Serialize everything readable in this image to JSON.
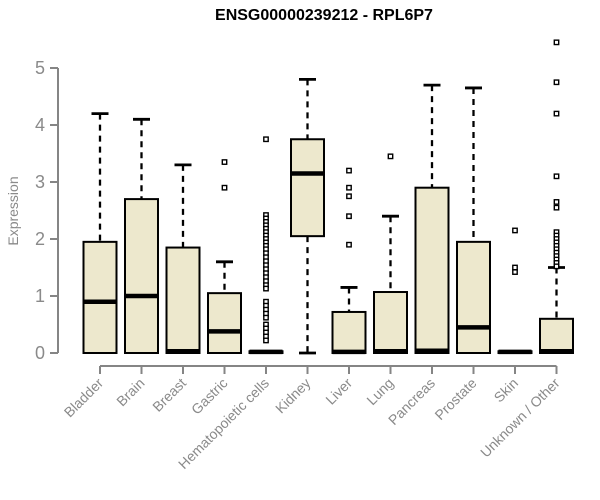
{
  "title": "ENSG00000239212 - RPL6P7",
  "colors": {
    "background": "#ffffff",
    "box_fill": "#ede8cd",
    "box_stroke": "#000000",
    "median_stroke": "#000000",
    "whisker_stroke": "#000000",
    "outlier_stroke": "#000000",
    "outlier_fill": "#ffffff",
    "axis_line": "#858585",
    "axis_text": "#8a8a8a",
    "title_text": "#000000"
  },
  "chart_data": {
    "type": "boxplot",
    "title": "ENSG00000239212 - RPL6P7",
    "xlabel": "",
    "ylabel": "Expression",
    "ylim": [
      0,
      5.5
    ],
    "yticks": [
      0,
      1,
      2,
      3,
      4,
      5
    ],
    "grid": false,
    "legend": null,
    "categories": [
      "Bladder",
      "Brain",
      "Breast",
      "Gastric",
      "Hematopoietic cells",
      "Kidney",
      "Liver",
      "Lung",
      "Pancreas",
      "Prostate",
      "Skin",
      "Unknown / Other"
    ],
    "boxes": [
      {
        "category": "Bladder",
        "whisker_low": 0,
        "q1": 0,
        "median": 0.9,
        "q3": 1.95,
        "whisker_high": 4.2,
        "outliers": []
      },
      {
        "category": "Brain",
        "whisker_low": 0,
        "q1": 0,
        "median": 1.0,
        "q3": 2.7,
        "whisker_high": 4.1,
        "outliers": []
      },
      {
        "category": "Breast",
        "whisker_low": 0,
        "q1": 0,
        "median": 0.03,
        "q3": 1.85,
        "whisker_high": 3.3,
        "outliers": []
      },
      {
        "category": "Gastric",
        "whisker_low": 0,
        "q1": 0,
        "median": 0.38,
        "q3": 1.05,
        "whisker_high": 1.6,
        "outliers": [
          3.35,
          2.9
        ]
      },
      {
        "category": "Hematopoietic cells",
        "whisker_low": 0,
        "q1": 0,
        "median": 0.02,
        "q3": 0.03,
        "whisker_high": 0.03,
        "outliers": [
          3.75,
          2.42,
          2.36,
          2.3,
          2.24,
          2.18,
          2.12,
          2.06,
          2.0,
          1.94,
          1.88,
          1.82,
          1.75,
          1.68,
          1.61,
          1.54,
          1.47,
          1.4,
          1.33,
          1.26,
          1.19,
          1.13,
          0.9,
          0.83,
          0.76,
          0.69,
          0.62,
          0.5,
          0.43,
          0.36,
          0.29,
          0.22
        ]
      },
      {
        "category": "Kidney",
        "whisker_low": 0,
        "q1": 2.05,
        "median": 3.15,
        "q3": 3.75,
        "whisker_high": 4.8,
        "outliers": []
      },
      {
        "category": "Liver",
        "whisker_low": 0,
        "q1": 0,
        "median": 0.02,
        "q3": 0.72,
        "whisker_high": 1.15,
        "outliers": [
          3.2,
          2.9,
          2.75,
          2.4,
          1.9
        ]
      },
      {
        "category": "Lung",
        "whisker_low": 0,
        "q1": 0,
        "median": 0.03,
        "q3": 1.07,
        "whisker_high": 2.4,
        "outliers": [
          3.45
        ]
      },
      {
        "category": "Pancreas",
        "whisker_low": 0,
        "q1": 0,
        "median": 0.04,
        "q3": 2.9,
        "whisker_high": 4.7,
        "outliers": []
      },
      {
        "category": "Prostate",
        "whisker_low": 0,
        "q1": 0,
        "median": 0.45,
        "q3": 1.95,
        "whisker_high": 4.65,
        "outliers": []
      },
      {
        "category": "Skin",
        "whisker_low": 0,
        "q1": 0,
        "median": 0.02,
        "q3": 0.03,
        "whisker_high": 0.03,
        "outliers": [
          2.15,
          1.5,
          1.42
        ]
      },
      {
        "category": "Unknown / Other",
        "whisker_low": 0,
        "q1": 0,
        "median": 0.03,
        "q3": 0.6,
        "whisker_high": 1.5,
        "outliers": [
          5.45,
          4.75,
          4.2,
          3.1,
          2.65,
          2.55,
          2.12,
          2.06,
          2.0,
          1.94,
          1.88,
          1.82,
          1.76,
          1.7,
          1.64,
          1.58,
          1.52
        ]
      }
    ]
  }
}
